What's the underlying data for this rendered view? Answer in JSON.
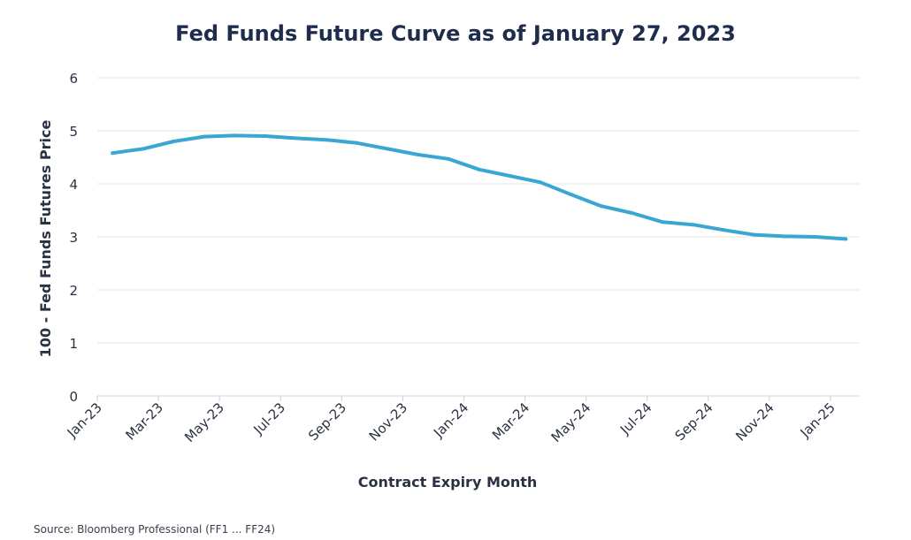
{
  "chart_data": {
    "type": "line",
    "title": "Fed Funds Future Curve as of January 27, 2023",
    "xlabel": "Contract Expiry Month",
    "ylabel": "100 - Fed Funds Futures Price",
    "ylim": [
      0,
      6
    ],
    "yticks": [
      0,
      1,
      2,
      3,
      4,
      5,
      6
    ],
    "grid": true,
    "line_color": "#3aa6d2",
    "x_tick_labels": [
      "Jan-23",
      "Mar-23",
      "May-23",
      "Jul-23",
      "Sep-23",
      "Nov-23",
      "Jan-24",
      "Mar-24",
      "May-24",
      "Jul-24",
      "Sep-24",
      "Nov-24",
      "Jan-25"
    ],
    "x": [
      "Jan-23",
      "Feb-23",
      "Mar-23",
      "Apr-23",
      "May-23",
      "Jun-23",
      "Jul-23",
      "Aug-23",
      "Sep-23",
      "Oct-23",
      "Nov-23",
      "Dec-23",
      "Jan-24",
      "Feb-24",
      "Mar-24",
      "Apr-24",
      "May-24",
      "Jun-24",
      "Jul-24",
      "Aug-24",
      "Sep-24",
      "Oct-24",
      "Nov-24",
      "Dec-24",
      "Jan-25"
    ],
    "values": [
      4.58,
      4.66,
      4.8,
      4.89,
      4.91,
      4.9,
      4.86,
      4.83,
      4.77,
      4.66,
      4.55,
      4.47,
      4.27,
      4.15,
      4.03,
      3.8,
      3.58,
      3.45,
      3.28,
      3.23,
      3.13,
      3.04,
      3.01,
      3.0,
      2.96
    ]
  },
  "source": "Source: Bloomberg Professional (FF1 ... FF24)"
}
